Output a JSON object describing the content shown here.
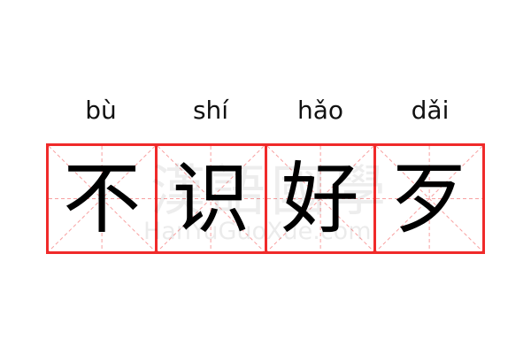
{
  "pinyin": [
    "bù",
    "shí",
    "hǎo",
    "dǎi"
  ],
  "characters": [
    "不",
    "识",
    "好",
    "歹"
  ],
  "watermark": {
    "chinese": "漢語國學",
    "latin": "HanYuGuoXue.com"
  },
  "colors": {
    "grid": "#f02a2a",
    "guide": "#f8a0a0",
    "text": "#000000"
  }
}
